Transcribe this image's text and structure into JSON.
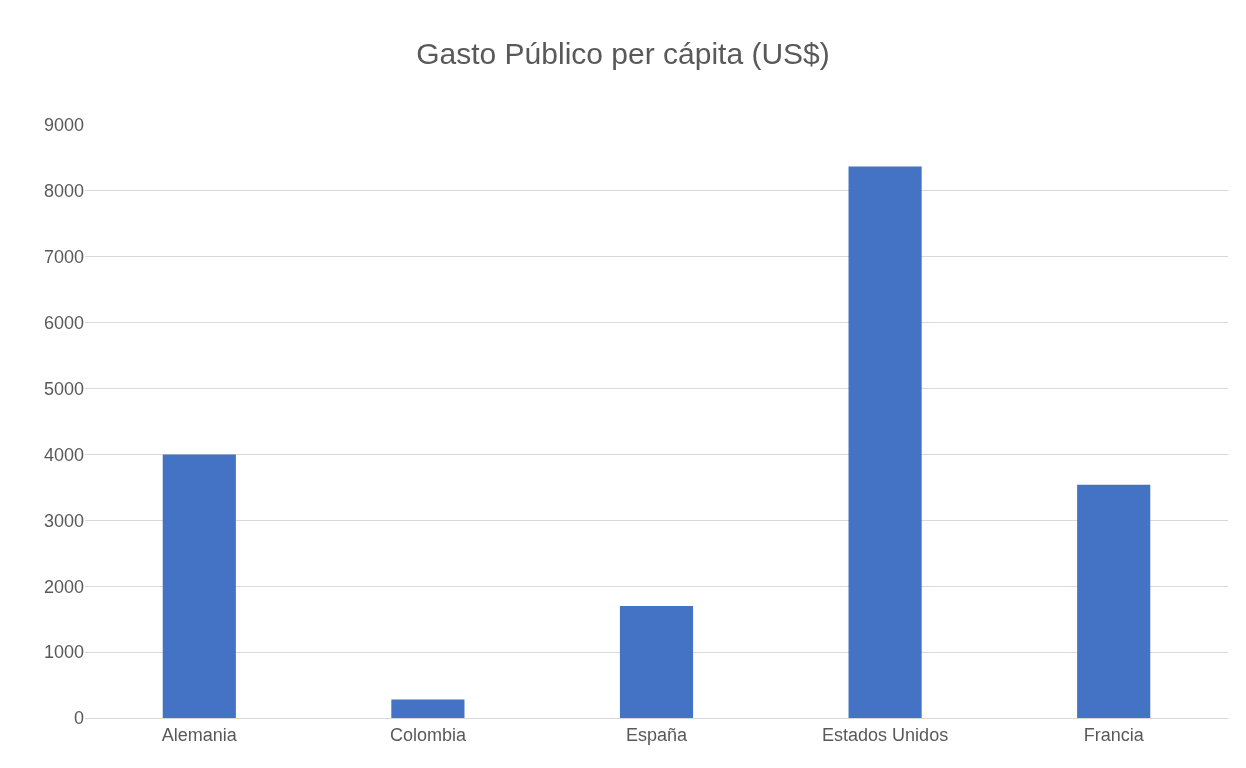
{
  "chart_data": {
    "type": "bar",
    "title": "Gasto Público per cápita (US$)",
    "categories": [
      "Alemania",
      "Colombia",
      "España",
      "Estados Unidos",
      "Francia"
    ],
    "values": [
      4000,
      280,
      1700,
      8370,
      3540
    ],
    "color": "#4472c4",
    "ylim": [
      0,
      9000
    ],
    "yticks": [
      0,
      1000,
      2000,
      3000,
      4000,
      5000,
      6000,
      7000,
      8000,
      9000
    ],
    "grid": "y"
  }
}
